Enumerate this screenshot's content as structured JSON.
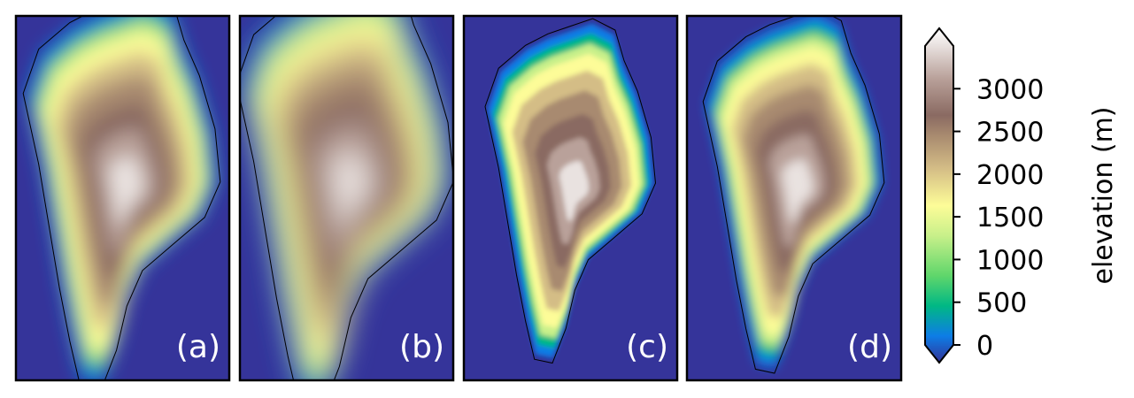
{
  "chart_data": {
    "type": "heatmap",
    "title": "",
    "panels": [
      {
        "label": "(a)",
        "description_key": "coarse-smooth"
      },
      {
        "label": "(b)",
        "description_key": "smoothest"
      },
      {
        "label": "(c)",
        "description_key": "high-resolution"
      },
      {
        "label": "(d)",
        "description_key": "intermediate"
      }
    ],
    "colorbar": {
      "label": "elevation (m)",
      "ticks": [
        0,
        500,
        1000,
        1500,
        2000,
        2500,
        3000
      ],
      "tick_labels": [
        "0",
        "500",
        "1000",
        "1500",
        "2000",
        "2500",
        "3000"
      ],
      "range": [
        0,
        3500
      ],
      "extend": "both",
      "colormap": "terrain"
    },
    "colors": {
      "ocean": "#35349a",
      "border": "#000000",
      "stops": [
        "#333399",
        "#0d7de6",
        "#00b884",
        "#5fd66b",
        "#c8f08a",
        "#fdfc98",
        "#d4bd86",
        "#a88a6f",
        "#8a6a62",
        "#b9a19a",
        "#e9e2e0",
        "#ffffff"
      ]
    }
  }
}
